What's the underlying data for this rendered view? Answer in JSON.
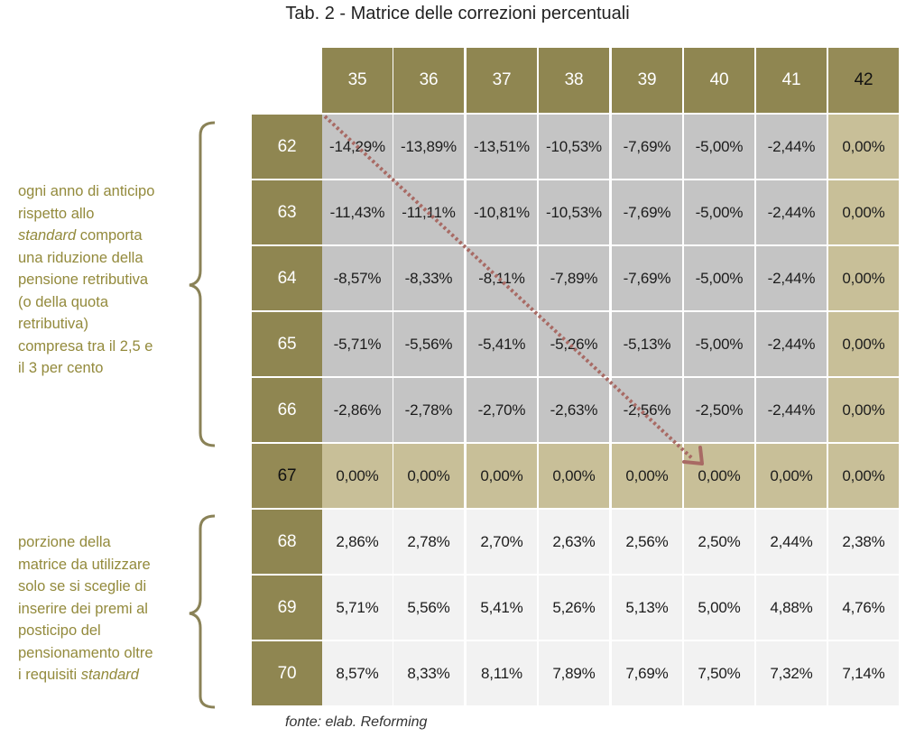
{
  "title": "Tab. 2 - Matrice delle correzioni percentuali",
  "columns": [
    "35",
    "36",
    "37",
    "38",
    "39",
    "40",
    "41",
    "42"
  ],
  "rows": [
    {
      "age": "62",
      "values": [
        "-14,29%",
        "-13,89%",
        "-13,51%",
        "-10,53%",
        "-7,69%",
        "-5,00%",
        "-2,44%",
        "0,00%"
      ]
    },
    {
      "age": "63",
      "values": [
        "-11,43%",
        "-11,11%",
        "-10,81%",
        "-10,53%",
        "-7,69%",
        "-5,00%",
        "-2,44%",
        "0,00%"
      ]
    },
    {
      "age": "64",
      "values": [
        "-8,57%",
        "-8,33%",
        "-8,11%",
        "-7,89%",
        "-7,69%",
        "-5,00%",
        "-2,44%",
        "0,00%"
      ]
    },
    {
      "age": "65",
      "values": [
        "-5,71%",
        "-5,56%",
        "-5,41%",
        "-5,26%",
        "-5,13%",
        "-5,00%",
        "-2,44%",
        "0,00%"
      ]
    },
    {
      "age": "66",
      "values": [
        "-2,86%",
        "-2,78%",
        "-2,70%",
        "-2,63%",
        "-2,56%",
        "-2,50%",
        "-2,44%",
        "0,00%"
      ]
    },
    {
      "age": "67",
      "values": [
        "0,00%",
        "0,00%",
        "0,00%",
        "0,00%",
        "0,00%",
        "0,00%",
        "0,00%",
        "0,00%"
      ]
    },
    {
      "age": "68",
      "values": [
        "2,86%",
        "2,78%",
        "2,70%",
        "2,63%",
        "2,56%",
        "2,50%",
        "2,44%",
        "2,38%"
      ]
    },
    {
      "age": "69",
      "values": [
        "5,71%",
        "5,56%",
        "5,41%",
        "5,26%",
        "5,13%",
        "5,00%",
        "4,88%",
        "4,76%"
      ]
    },
    {
      "age": "70",
      "values": [
        "8,57%",
        "8,33%",
        "8,11%",
        "7,89%",
        "7,69%",
        "7,50%",
        "7,32%",
        "7,14%"
      ]
    }
  ],
  "note_top": {
    "line1": "ogni anno di anticipo",
    "line2": "rispetto allo",
    "line3_em": "standard",
    "line3_rest": " comporta",
    "line4": "una riduzione della",
    "line5": "pensione retributiva",
    "line6": "(o della quota",
    "line7": "retributiva)",
    "line8": "compresa tra il 2,5 e",
    "line9": "il 3 per cento"
  },
  "note_bottom": {
    "line1": "porzione della",
    "line2": "matrice da utilizzare",
    "line3": "solo se si sceglie di",
    "line4": "inserire dei premi al",
    "line5": "posticipo del",
    "line6": "pensionamento oltre",
    "line7_rest": "i requisiti ",
    "line7_em": "standard"
  },
  "source": "fonte: elab. Reforming",
  "colors": {
    "header": "#8f8651",
    "grey_cell": "#c4c4c4",
    "tan_cell": "#c8bf98",
    "light_cell": "#f2f2f2",
    "note_text": "#938a3c",
    "arrow": "#a86a64",
    "brace": "#8a8257"
  }
}
